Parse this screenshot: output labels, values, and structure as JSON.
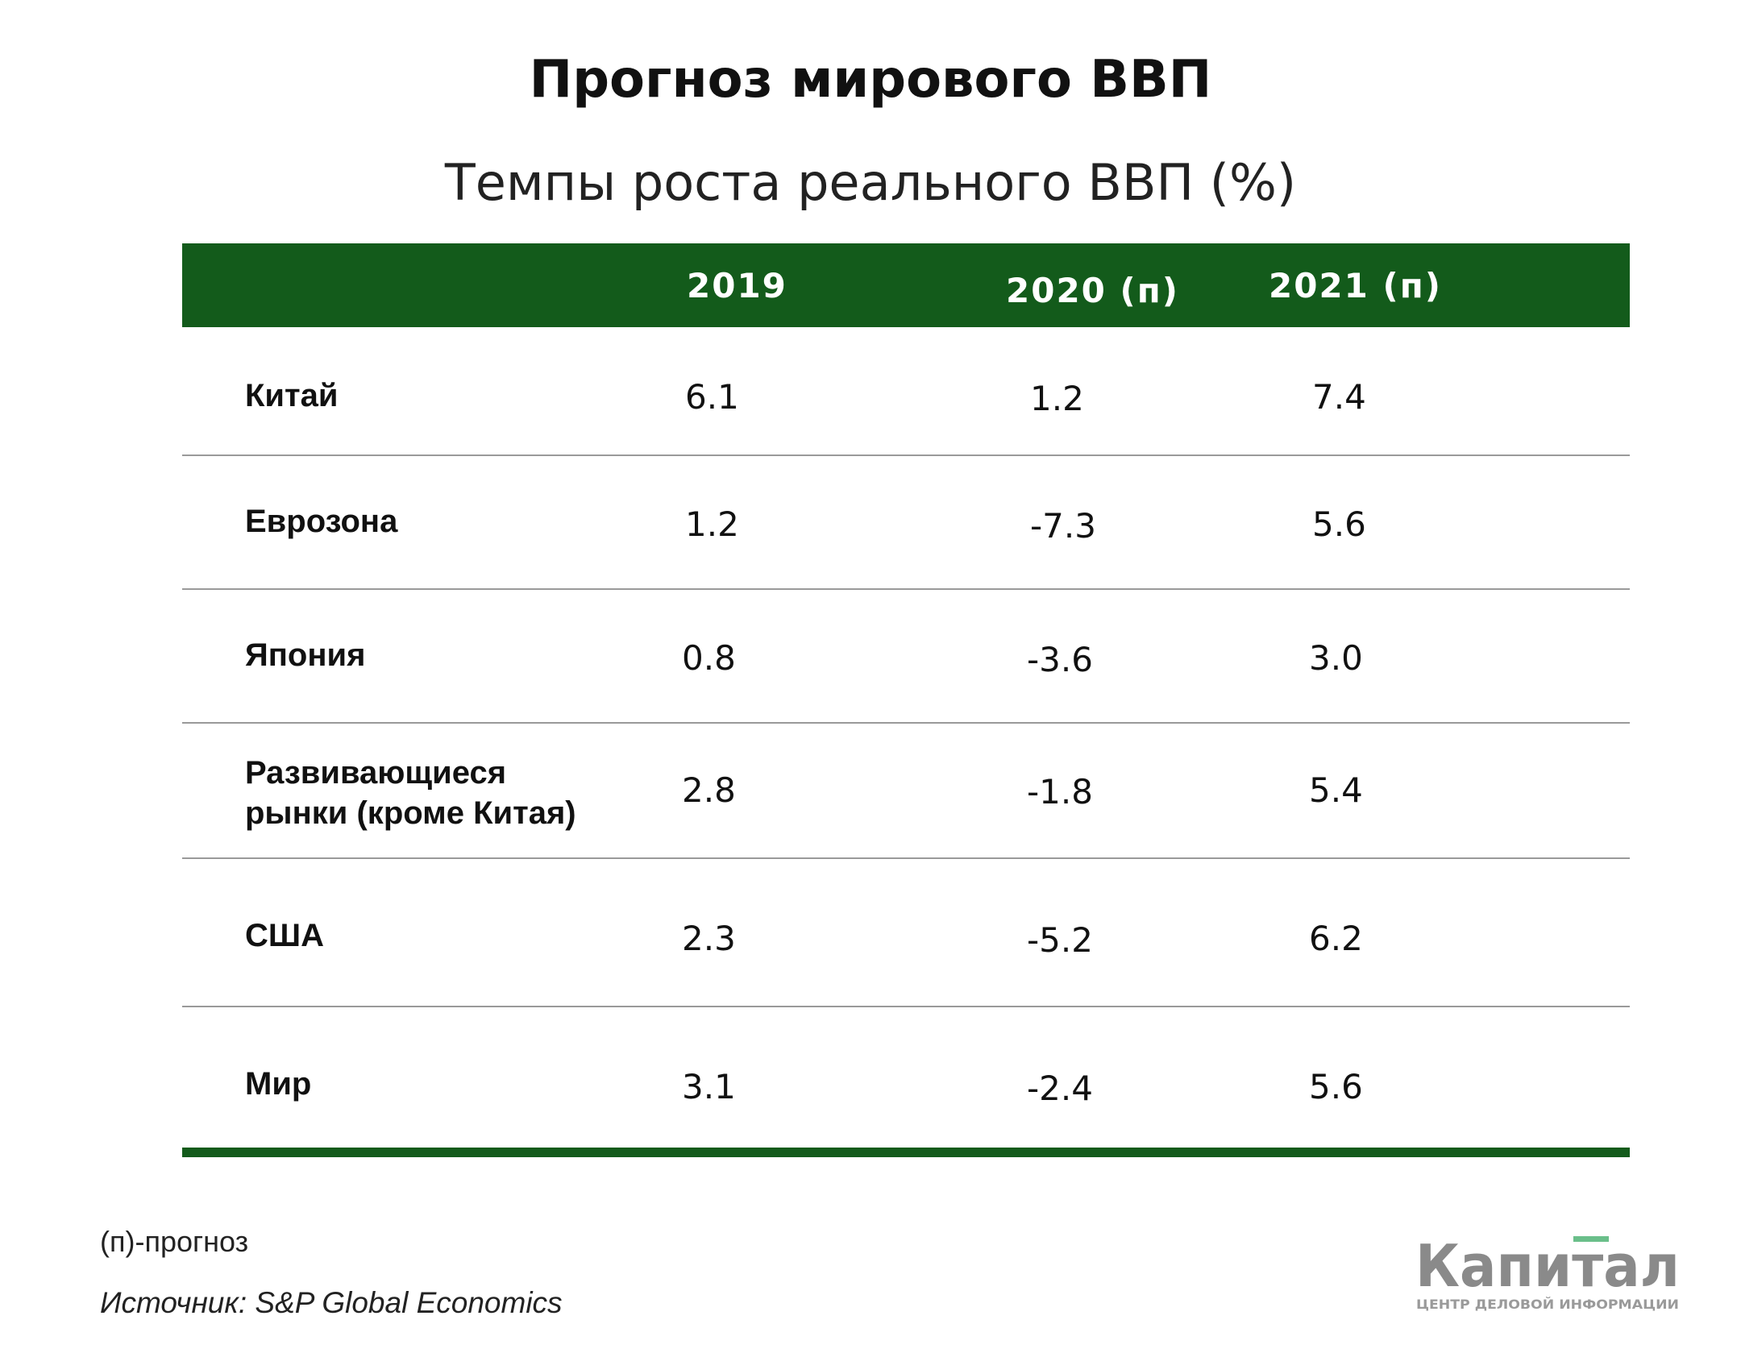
{
  "title": "Прогноз мирового ВВП",
  "subtitle": "Темпы роста реального ВВП (%)",
  "footnote": "(п)-прогноз",
  "source": "Источник: S&P Global Economics",
  "logo": {
    "name": "Капитал",
    "tagline": "ЦЕНТР ДЕЛОВОЙ ИНФОРМАЦИИ"
  },
  "colors": {
    "header_bg": "#135b1b",
    "accent": "#135b1b",
    "logo_gray": "#8a8a8a",
    "logo_green": "#6abf8a"
  },
  "chart_data": {
    "type": "table",
    "columns": [
      "",
      "2019",
      "2020 (п)",
      "2021 (п)"
    ],
    "rows": [
      {
        "label": "Китай",
        "values": [
          "6.1",
          "1.2",
          "7.4"
        ]
      },
      {
        "label": "Еврозона",
        "values": [
          "1.2",
          "-7.3",
          "5.6"
        ]
      },
      {
        "label": "Япония",
        "values": [
          "0.8",
          "-3.6",
          "3.0"
        ]
      },
      {
        "label": "Развивающиеся рынки (кроме Китая)",
        "label_lines": [
          "Развивающиеся",
          "рынки (кроме Китая)"
        ],
        "values": [
          "2.8",
          "-1.8",
          "5.4"
        ]
      },
      {
        "label": "США",
        "values": [
          "2.3",
          "-5.2",
          "6.2"
        ]
      },
      {
        "label": "Мир",
        "values": [
          "3.1",
          "-2.4",
          "5.6"
        ]
      }
    ]
  }
}
